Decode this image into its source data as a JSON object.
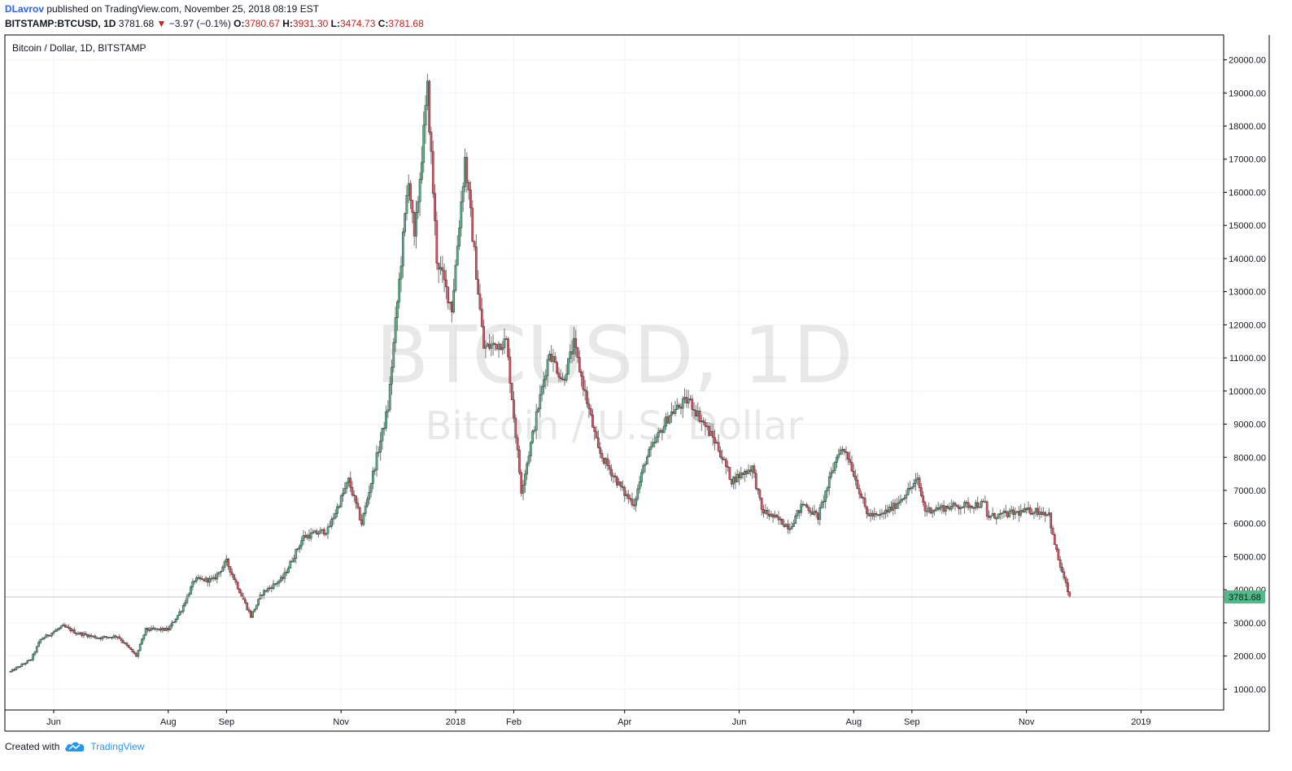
{
  "header": {
    "author": "DLavrov",
    "published_text": "published on TradingView.com, November 25, 2018 08:19 EST",
    "symbol": "BITSTAMP:BTCUSD, 1D",
    "last": "3781.68",
    "change": "−3.97 (−0.1%)",
    "open_label": "O:",
    "open": "3780.67",
    "high_label": "H:",
    "high": "3931.30",
    "low_label": "L:",
    "low": "3474.73",
    "close_label": "C:",
    "close": "3781.68"
  },
  "chart_data": {
    "type": "candlestick",
    "title": "Bitcoin / Dollar, 1D, BITSTAMP",
    "watermark_primary": "BTCUSD, 1D",
    "watermark_secondary": "Bitcoin / U.S. Dollar",
    "price_ticks": [
      "1000.00",
      "2000.00",
      "3000.00",
      "4000.00",
      "5000.00",
      "6000.00",
      "7000.00",
      "8000.00",
      "9000.00",
      "10000.00",
      "11000.00",
      "12000.00",
      "13000.00",
      "14000.00",
      "15000.00",
      "16000.00",
      "17000.00",
      "18000.00",
      "19000.00",
      "20000.00"
    ],
    "ylim": [
      370,
      20750
    ],
    "x_range": [
      "2017-05-06",
      "2019-02-14"
    ],
    "time_ticks": [
      {
        "label": "Jun",
        "date": "2017-06-01"
      },
      {
        "label": "Aug",
        "date": "2017-08-01"
      },
      {
        "label": "Sep",
        "date": "2017-09-01"
      },
      {
        "label": "Nov",
        "date": "2017-11-01"
      },
      {
        "label": "2018",
        "date": "2018-01-01"
      },
      {
        "label": "Feb",
        "date": "2018-02-01"
      },
      {
        "label": "Apr",
        "date": "2018-04-01"
      },
      {
        "label": "Jun",
        "date": "2018-06-01"
      },
      {
        "label": "Aug",
        "date": "2018-08-01"
      },
      {
        "label": "Sep",
        "date": "2018-09-01"
      },
      {
        "label": "Nov",
        "date": "2018-11-01"
      },
      {
        "label": "2019",
        "date": "2019-01-01"
      }
    ],
    "last_price": 3781.68,
    "last_price_label": "3781.68",
    "price_path": [
      [
        "2017-05-09",
        1530
      ],
      [
        "2017-05-20",
        1900
      ],
      [
        "2017-05-25",
        2500
      ],
      [
        "2017-06-06",
        2900
      ],
      [
        "2017-06-13",
        2700
      ],
      [
        "2017-06-25",
        2550
      ],
      [
        "2017-07-05",
        2600
      ],
      [
        "2017-07-15",
        2000
      ],
      [
        "2017-07-20",
        2800
      ],
      [
        "2017-08-01",
        2800
      ],
      [
        "2017-08-08",
        3400
      ],
      [
        "2017-08-15",
        4300
      ],
      [
        "2017-08-25",
        4300
      ],
      [
        "2017-09-01",
        4850
      ],
      [
        "2017-09-14",
        3200
      ],
      [
        "2017-09-20",
        3900
      ],
      [
        "2017-10-01",
        4350
      ],
      [
        "2017-10-12",
        5600
      ],
      [
        "2017-10-25",
        5800
      ],
      [
        "2017-11-05",
        7300
      ],
      [
        "2017-11-12",
        6000
      ],
      [
        "2017-11-20",
        8000
      ],
      [
        "2017-11-26",
        9500
      ],
      [
        "2017-12-07",
        16500
      ],
      [
        "2017-12-10",
        14500
      ],
      [
        "2017-12-17",
        19100
      ],
      [
        "2017-12-22",
        14000
      ],
      [
        "2017-12-30",
        12500
      ],
      [
        "2018-01-06",
        17000
      ],
      [
        "2018-01-16",
        11300
      ],
      [
        "2018-01-28",
        11500
      ],
      [
        "2018-02-05",
        7000
      ],
      [
        "2018-02-20",
        11200
      ],
      [
        "2018-02-27",
        10300
      ],
      [
        "2018-03-05",
        11400
      ],
      [
        "2018-03-18",
        8200
      ],
      [
        "2018-04-01",
        6900
      ],
      [
        "2018-04-06",
        6600
      ],
      [
        "2018-04-12",
        7900
      ],
      [
        "2018-04-25",
        9300
      ],
      [
        "2018-05-05",
        9750
      ],
      [
        "2018-05-20",
        8400
      ],
      [
        "2018-05-28",
        7300
      ],
      [
        "2018-06-08",
        7700
      ],
      [
        "2018-06-13",
        6400
      ],
      [
        "2018-06-28",
        5900
      ],
      [
        "2018-07-05",
        6600
      ],
      [
        "2018-07-13",
        6200
      ],
      [
        "2018-07-24",
        8200
      ],
      [
        "2018-07-28",
        8200
      ],
      [
        "2018-08-08",
        6300
      ],
      [
        "2018-08-14",
        6200
      ],
      [
        "2018-08-22",
        6500
      ],
      [
        "2018-09-04",
        7300
      ],
      [
        "2018-09-08",
        6400
      ],
      [
        "2018-09-20",
        6500
      ],
      [
        "2018-10-10",
        6600
      ],
      [
        "2018-10-11",
        6200
      ],
      [
        "2018-11-05",
        6400
      ],
      [
        "2018-11-13",
        6300
      ],
      [
        "2018-11-15",
        5600
      ],
      [
        "2018-11-19",
        4700
      ],
      [
        "2018-11-24",
        3781.68
      ]
    ]
  },
  "colors": {
    "up": "#53b987",
    "down": "#eb4d5c",
    "wick": "#737375",
    "grid": "#f0f3fa",
    "border": "#000000",
    "price_label": "#53b987"
  },
  "footer": {
    "created_with": "Created with",
    "brand": "TradingView",
    "logo_icon": "tradingview-cloud-icon"
  }
}
